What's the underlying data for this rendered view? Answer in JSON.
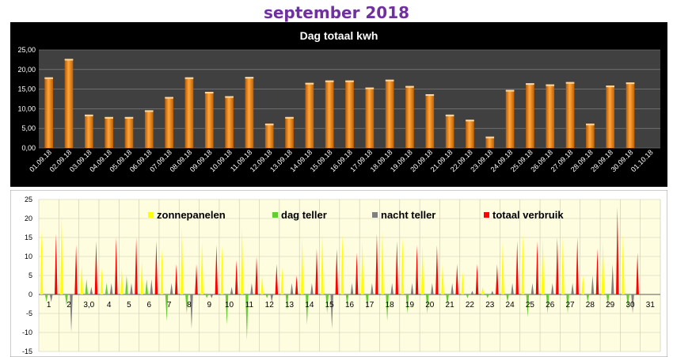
{
  "page_title": "september 2018",
  "colors": {
    "bar": "#ff9a2e",
    "solar": "#ffff00",
    "day": "#66cc33",
    "night": "#808080",
    "total": "#ff0000",
    "chart1_bg": "#000000",
    "chart1_plot": "#404040",
    "chart2_bg": "#fffde0"
  },
  "chart_data": [
    {
      "type": "bar",
      "title": "Dag totaal kwh",
      "ylim": [
        0,
        25
      ],
      "yticks": [
        "0,00",
        "5,00",
        "10,00",
        "15,00",
        "20,00",
        "25,00"
      ],
      "categories": [
        "01.09.18",
        "02.09.18",
        "03.09.18",
        "04.09.18",
        "05.09.18",
        "06.09.18",
        "07.09.18",
        "08.09.18",
        "09.09.18",
        "10.09.18",
        "11.09.18",
        "12.09.18",
        "13.09.18",
        "14.09.18",
        "15.09.18",
        "16.09.18",
        "17.09.18",
        "18.09.18",
        "19.09.18",
        "20.09.18",
        "21.09.18",
        "22.09.18",
        "23.09.18",
        "24.09.18",
        "25.09.18",
        "26.09.18",
        "27.09.18",
        "28.09.18",
        "29.09.18",
        "30.09.18",
        "01.10.18"
      ],
      "values": [
        18.0,
        22.7,
        8.5,
        7.9,
        7.9,
        9.6,
        13.0,
        18.0,
        14.3,
        13.2,
        18.1,
        6.2,
        7.9,
        16.6,
        17.2,
        17.2,
        15.4,
        17.4,
        15.8,
        13.7,
        8.5,
        7.2,
        2.9,
        14.8,
        16.5,
        16.2,
        16.8,
        6.2,
        15.9,
        16.7,
        0
      ]
    },
    {
      "type": "line",
      "ylim": [
        -15,
        25
      ],
      "yticks": [
        "-15",
        "-10",
        "-5",
        "0",
        "5",
        "10",
        "15",
        "20",
        "25"
      ],
      "x": [
        "1",
        "2",
        "3,0",
        "4",
        "5",
        "6",
        "7",
        "8",
        "9",
        "10",
        "11",
        "12",
        "13",
        "14",
        "15",
        "16",
        "17",
        "18",
        "19",
        "20",
        "21",
        "22",
        "23",
        "24",
        "25",
        "26",
        "27",
        "28",
        "29",
        "30",
        "31"
      ],
      "series": [
        {
          "name": "zonnepanelen",
          "values": [
            17,
            21,
            8,
            7,
            7,
            9,
            12,
            18,
            14,
            13,
            18,
            5,
            7,
            15,
            16,
            16,
            14,
            17,
            15,
            13,
            8,
            6,
            2,
            14,
            16,
            15,
            15,
            5,
            14,
            16,
            0
          ]
        },
        {
          "name": "dag teller",
          "values": [
            -2,
            -3,
            4,
            3,
            5,
            4,
            -7,
            -5,
            -1,
            -8,
            -12,
            -1,
            -4,
            -8,
            -5,
            -3,
            -4,
            -7,
            -5,
            -5,
            -3,
            -1,
            -1,
            -2,
            -6,
            -5,
            -5,
            -2,
            -3,
            -4,
            0
          ]
        },
        {
          "name": "nacht teller",
          "values": [
            -2,
            -10,
            2,
            3,
            3,
            4,
            3,
            -9,
            -1,
            2,
            3,
            -2,
            3,
            3,
            -9,
            3,
            3,
            3,
            3,
            3,
            3,
            1,
            1,
            3,
            3,
            3,
            3,
            5,
            8,
            -5,
            0
          ]
        },
        {
          "name": "totaal verbruik",
          "values": [
            16,
            13,
            14,
            15,
            15,
            14,
            8,
            8,
            13,
            9,
            10,
            8,
            5,
            12,
            12,
            11,
            16,
            14,
            13,
            13,
            8,
            8,
            8,
            14,
            14,
            15,
            15,
            12,
            23,
            11,
            0
          ]
        }
      ]
    }
  ]
}
